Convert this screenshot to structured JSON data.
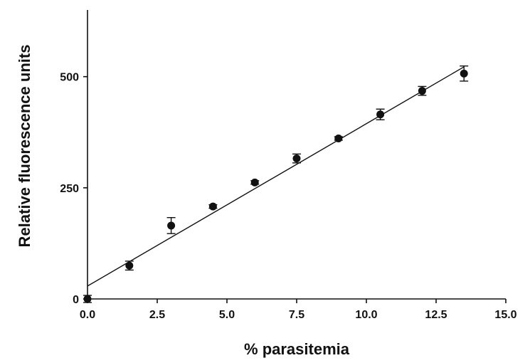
{
  "chart_data": {
    "type": "scatter",
    "title": "",
    "xlabel": "% parasitemia",
    "ylabel": "Relative fluorescence units",
    "xlim": [
      0,
      15
    ],
    "ylim": [
      0,
      650
    ],
    "x_ticks": [
      0,
      2.5,
      5,
      7.5,
      10,
      12.5,
      15
    ],
    "x_tick_labels": [
      "0.0",
      "2.5",
      "5.0",
      "7.5",
      "10.0",
      "12.5",
      "15.0"
    ],
    "y_ticks": [
      0,
      250,
      500
    ],
    "y_tick_labels": [
      "0",
      "250",
      "500"
    ],
    "grid": false,
    "legend": "none",
    "series": [
      {
        "x": [
          0,
          1.5,
          3,
          4.5,
          6,
          7.5,
          9,
          10.5,
          12,
          13.5
        ],
        "y": [
          0,
          75,
          165,
          208,
          262,
          316,
          361,
          415,
          468,
          507
        ],
        "error": [
          8,
          10,
          18,
          4,
          4,
          10,
          4,
          12,
          10,
          17
        ]
      }
    ],
    "fit_line": {
      "x": [
        0,
        13.5
      ],
      "y": [
        29,
        522
      ]
    },
    "colors": {
      "points": "#111111",
      "line": "#111111",
      "axis": "#111111"
    }
  }
}
